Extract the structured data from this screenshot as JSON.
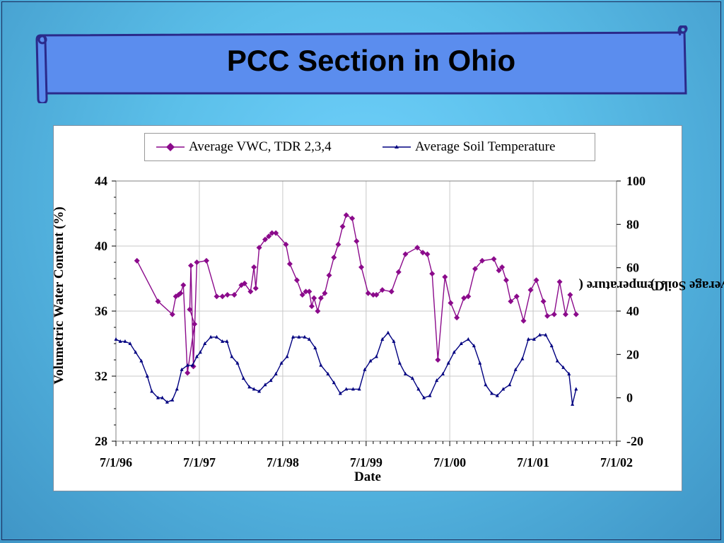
{
  "slide": {
    "title": "PCC Section in Ohio"
  },
  "colors": {
    "vwc": "#8b0a8b",
    "temp": "#000080",
    "background_top": "#6fd0fb",
    "background_bottom": "#3f95c6",
    "banner_stroke": "#2a2a8a"
  },
  "chart_data": {
    "type": "line",
    "xlabel": "Date",
    "ylabel": "Volumetric Water Content (%)",
    "y2label": "Average Soil Temperature (°C)",
    "y2label_prefix": "Average Soil Temperature (",
    "y2label_superscript": "o",
    "y2label_suffix": "C)",
    "xlim": [
      "1996-07-01",
      "2002-07-01"
    ],
    "ylim": [
      28,
      44
    ],
    "y2lim": [
      -20,
      100
    ],
    "x_tick_labels": [
      "7/1/96",
      "7/1/97",
      "7/1/98",
      "7/1/99",
      "7/1/00",
      "7/1/01",
      "7/1/02"
    ],
    "y_tick_labels": [
      "28",
      "32",
      "36",
      "40",
      "44"
    ],
    "y2_tick_labels": [
      "-20",
      "0",
      "20",
      "40",
      "60",
      "80",
      "100"
    ],
    "grid": true,
    "legend": "top",
    "series": [
      {
        "name": "Average VWC, TDR 2,3,4",
        "axis": "left",
        "marker": "diamond",
        "x": [
          "1996-10-01",
          "1997-01-01",
          "1997-03-05",
          "1997-03-20",
          "1997-04-01",
          "1997-04-10",
          "1997-04-22",
          "1997-05-10",
          "1997-06-10",
          "1997-05-20",
          "1997-05-25",
          "1997-06-05",
          "1997-06-20",
          "1997-08-01",
          "1997-09-15",
          "1997-10-10",
          "1997-11-01",
          "1997-12-01",
          "1998-01-01",
          "1998-01-15",
          "1998-02-10",
          "1998-02-25",
          "1998-03-05",
          "1998-03-20",
          "1998-04-15",
          "1998-05-01",
          "1998-05-15",
          "1998-06-01",
          "1998-07-15",
          "1998-08-01",
          "1998-09-01",
          "1998-09-25",
          "1998-10-10",
          "1998-10-25",
          "1998-11-05",
          "1998-11-15",
          "1998-12-01",
          "1998-12-15",
          "1999-01-01",
          "1999-01-20",
          "1999-02-10",
          "1999-03-01",
          "1999-03-20",
          "1999-04-05",
          "1999-05-01",
          "1999-05-20",
          "1999-06-10",
          "1999-07-10",
          "1999-08-01",
          "1999-08-15",
          "1999-09-10",
          "1999-10-20",
          "1999-11-20",
          "1999-12-20",
          "2000-02-10",
          "2000-03-05",
          "2000-03-25",
          "2000-04-15",
          "2000-05-10",
          "2000-06-10",
          "2000-07-05",
          "2000-08-01",
          "2000-09-01",
          "2000-09-20",
          "2000-10-20",
          "2000-11-20",
          "2001-01-10",
          "2001-02-01",
          "2001-02-15",
          "2001-03-05",
          "2001-03-25",
          "2001-04-20",
          "2001-05-20",
          "2001-06-20",
          "2001-07-15",
          "2001-08-15",
          "2001-09-01",
          "2001-10-01",
          "2001-10-25",
          "2001-11-20",
          "2001-12-10",
          "2002-01-05"
        ],
        "values": [
          39.1,
          36.6,
          35.8,
          36.9,
          37.0,
          37.1,
          37.6,
          32.2,
          35.2,
          36.1,
          38.8,
          32.6,
          39.0,
          39.1,
          36.9,
          36.9,
          37.0,
          37.0,
          37.6,
          37.7,
          37.2,
          38.7,
          37.4,
          39.9,
          40.4,
          40.6,
          40.8,
          40.8,
          40.1,
          38.9,
          37.9,
          37.0,
          37.2,
          37.2,
          36.3,
          36.8,
          36.0,
          36.8,
          37.1,
          38.2,
          39.3,
          40.1,
          41.2,
          41.9,
          41.7,
          40.3,
          38.7,
          37.1,
          37.0,
          37.0,
          37.3,
          37.2,
          38.4,
          39.5,
          39.9,
          39.6,
          39.5,
          38.3,
          33.0,
          38.1,
          36.5,
          35.6,
          36.8,
          36.9,
          38.6,
          39.1,
          39.2,
          38.5,
          38.7,
          37.9,
          36.6,
          36.9,
          35.4,
          37.3,
          37.9,
          36.6,
          35.7,
          35.8,
          37.8,
          35.8,
          37.0,
          35.8
        ]
      },
      {
        "name": "Average Soil Temperature",
        "axis": "right",
        "marker": "small-triangle",
        "x": [
          "1996-07-01",
          "1996-07-20",
          "1996-08-10",
          "1996-09-01",
          "1996-09-25",
          "1996-10-20",
          "1996-11-15",
          "1996-12-05",
          "1997-01-01",
          "1997-01-20",
          "1997-02-10",
          "1997-03-05",
          "1997-03-25",
          "1997-04-15",
          "1997-05-10",
          "1997-06-01",
          "1997-06-20",
          "1997-07-05",
          "1997-07-25",
          "1997-08-20",
          "1997-09-15",
          "1997-10-10",
          "1997-10-30",
          "1997-11-20",
          "1997-12-15",
          "1998-01-10",
          "1998-02-05",
          "1998-02-25",
          "1998-03-20",
          "1998-04-15",
          "1998-05-10",
          "1998-06-01",
          "1998-06-25",
          "1998-07-20",
          "1998-08-15",
          "1998-09-10",
          "1998-10-05",
          "1998-10-25",
          "1998-11-20",
          "1998-12-15",
          "1999-01-15",
          "1999-02-10",
          "1999-03-10",
          "1999-04-05",
          "1999-05-05",
          "1999-06-01",
          "1999-06-25",
          "1999-07-20",
          "1999-08-15",
          "1999-09-10",
          "1999-10-05",
          "1999-10-30",
          "1999-11-25",
          "1999-12-20",
          "2000-01-20",
          "2000-02-15",
          "2000-03-10",
          "2000-04-05",
          "2000-05-05",
          "2000-06-01",
          "2000-06-25",
          "2000-07-20",
          "2000-08-20",
          "2000-09-20",
          "2000-10-15",
          "2000-11-10",
          "2000-12-05",
          "2001-01-01",
          "2001-01-25",
          "2001-02-20",
          "2001-03-20",
          "2001-04-15",
          "2001-05-15",
          "2001-06-10",
          "2001-07-05",
          "2001-07-30",
          "2001-08-25",
          "2001-09-20",
          "2001-10-15",
          "2001-11-10",
          "2001-12-05",
          "2001-12-20",
          "2002-01-05"
        ],
        "values": [
          27,
          26,
          26,
          25,
          21,
          17,
          10,
          3,
          0,
          0,
          -2,
          -1,
          4,
          13,
          15,
          15,
          19,
          21,
          25,
          28,
          28,
          26,
          26,
          19,
          16,
          9,
          5,
          4,
          3,
          6,
          8,
          11,
          16,
          19,
          28,
          28,
          28,
          27,
          23,
          15,
          11,
          7,
          2,
          4,
          4,
          4,
          13,
          17,
          19,
          27,
          30,
          26,
          16,
          11,
          9,
          4,
          0,
          1,
          8,
          11,
          16,
          21,
          25,
          27,
          24,
          16,
          6,
          2,
          1,
          4,
          6,
          13,
          18,
          27,
          27,
          29,
          29,
          24,
          17,
          14,
          11,
          -3,
          4
        ]
      }
    ]
  }
}
